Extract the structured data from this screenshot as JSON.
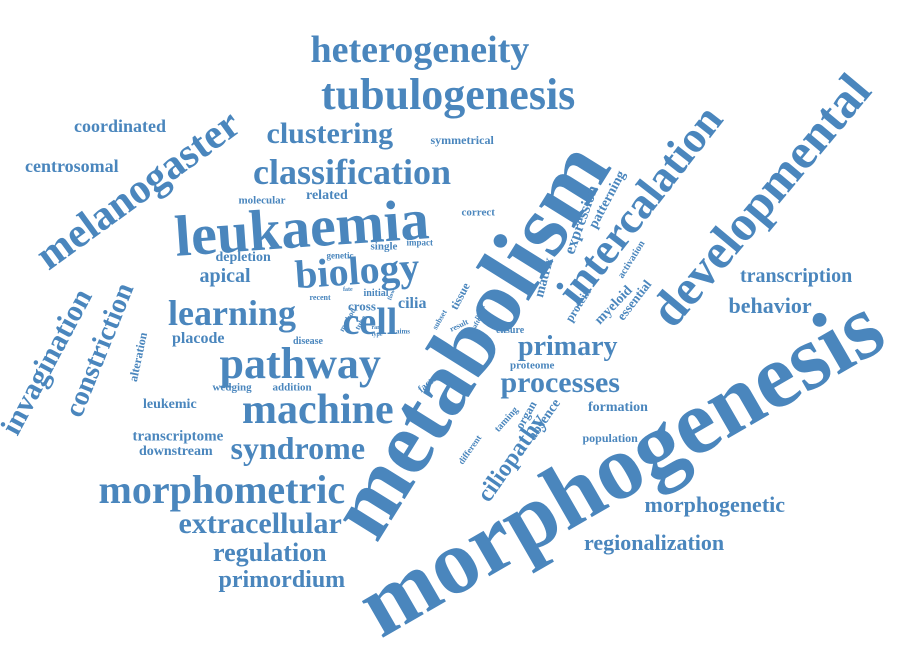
{
  "word_color": "#4a86bd",
  "words": [
    "morphogenesis",
    "metabolism",
    "leukaemia",
    "developmental",
    "intercalation",
    "melanogaster",
    "tubulogenesis",
    "heterogeneity",
    "classification",
    "morphometric",
    "pathway",
    "machine",
    "cell",
    "biology",
    "invagination",
    "constriction",
    "syndrome",
    "learning",
    "processes",
    "extracellular",
    "clustering",
    "primary",
    "regulation",
    "primordium",
    "ciliopathy",
    "transcription",
    "behavior",
    "morphogenetic",
    "regionalization",
    "coordinated",
    "centrosomal",
    "apical",
    "cilia",
    "transcriptome",
    "downstream",
    "leukemic",
    "placode",
    "depletion",
    "formation",
    "population",
    "symmetrical",
    "molecular",
    "related",
    "correct",
    "expression",
    "patterning",
    "matrix",
    "protein",
    "myeloid",
    "essential",
    "activation",
    "alteration",
    "wedging",
    "addition",
    "disease",
    "cross",
    "single",
    "impact",
    "genetic",
    "initial",
    "recent",
    "factor",
    "taming",
    "organ",
    "absence",
    "proteome",
    "ensure",
    "different",
    "tissue",
    "method",
    "tube",
    "subset",
    "point",
    "after",
    "result",
    "fate",
    "flow",
    "aims",
    "rare",
    "type"
  ]
}
